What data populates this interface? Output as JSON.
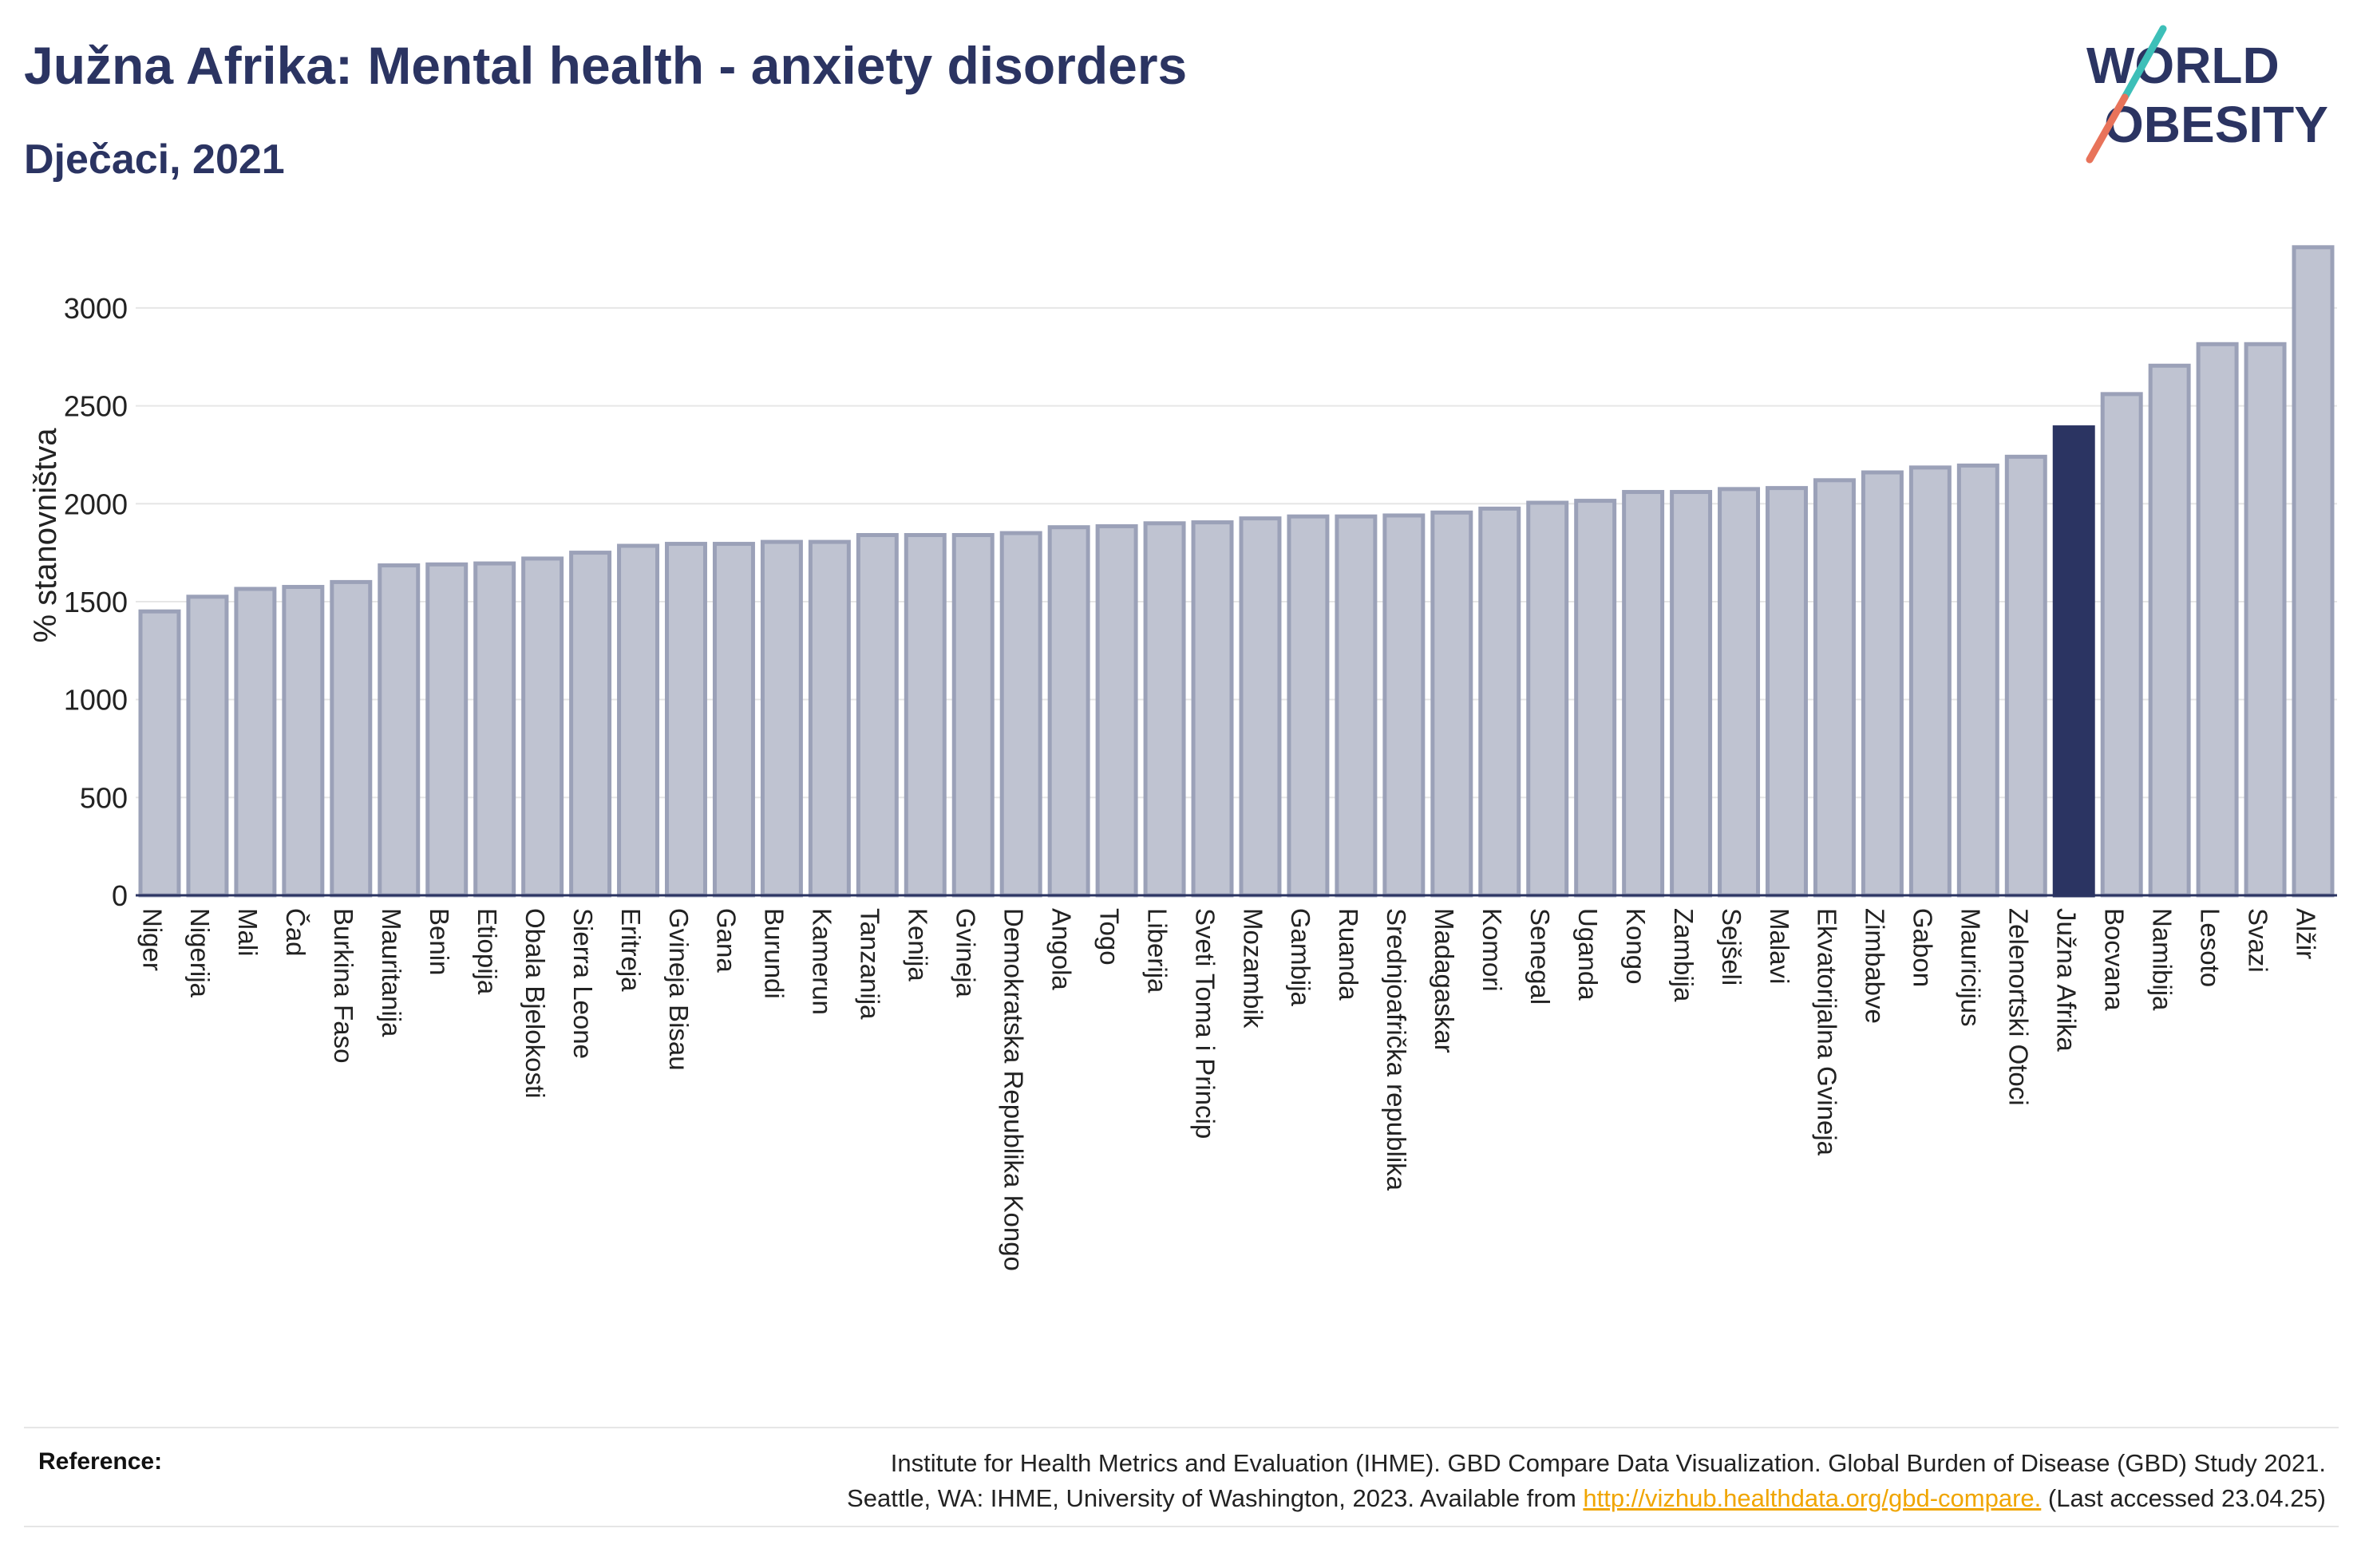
{
  "header": {
    "title": "Južna Afrika: Mental health - anxiety disorders",
    "subtitle": "Dječaci, 2021"
  },
  "logo": {
    "line1": "WORLD",
    "line2": "OBESITY",
    "text_color": "#2b3462",
    "slash_colors": [
      "#3dbfb8",
      "#e8735a"
    ]
  },
  "colors": {
    "bar_default": "#bfc3d1",
    "bar_border": "#9ba1b8",
    "bar_highlight": "#2b3462",
    "gridline": "#e6e6e6"
  },
  "chart_data": {
    "type": "bar",
    "title": "Južna Afrika: Mental health - anxiety disorders",
    "subtitle": "Dječaci, 2021",
    "xlabel": "",
    "ylabel": "% stanovništva",
    "ylim": [
      0,
      3350
    ],
    "yticks": [
      0,
      500,
      1000,
      1500,
      2000,
      2500,
      3000
    ],
    "grid": true,
    "highlight": "Južna Afrika",
    "categories": [
      "Niger",
      "Nigerija",
      "Mali",
      "Čad",
      "Burkina Faso",
      "Mauritanija",
      "Benin",
      "Etiopija",
      "Obala Bjelokosti",
      "Sierra Leone",
      "Eritreja",
      "Gvineja Bisau",
      "Gana",
      "Burundi",
      "Kamerun",
      "Tanzanija",
      "Kenija",
      "Gvineja",
      "Demokratska Republika Kongo",
      "Angola",
      "Togo",
      "Liberija",
      "Sveti Toma i Princip",
      "Mozambik",
      "Gambija",
      "Ruanda",
      "Srednjoafrička republika",
      "Madagaskar",
      "Komori",
      "Senegal",
      "Uganda",
      "Kongo",
      "Zambija",
      "Sejšeli",
      "Malavi",
      "Ekvatorijalna Gvineja",
      "Zimbabve",
      "Gabon",
      "Mauricijus",
      "Zelenortski Otoci",
      "Južna Afrika",
      "Bocvana",
      "Namibija",
      "Lesoto",
      "Svazi",
      "Alžir"
    ],
    "values": [
      1450,
      1525,
      1565,
      1575,
      1600,
      1685,
      1690,
      1695,
      1720,
      1750,
      1785,
      1795,
      1795,
      1805,
      1805,
      1840,
      1840,
      1840,
      1850,
      1880,
      1885,
      1900,
      1905,
      1925,
      1935,
      1935,
      1940,
      1955,
      1975,
      2005,
      2015,
      2060,
      2060,
      2075,
      2080,
      2120,
      2160,
      2185,
      2195,
      2240,
      2390,
      2560,
      2705,
      2815,
      2815,
      3310
    ]
  },
  "reference": {
    "label": "Reference:",
    "line1": "Institute for Health Metrics and Evaluation (IHME). GBD Compare Data Visualization. Global Burden of Disease (GBD) Study 2021.",
    "line2_prefix": "Seattle, WA: IHME, University of Washington, 2023. Available from ",
    "link": "http://vizhub.healthdata.org/gbd-compare.",
    "line2_suffix": " (Last accessed 23.04.25)"
  }
}
